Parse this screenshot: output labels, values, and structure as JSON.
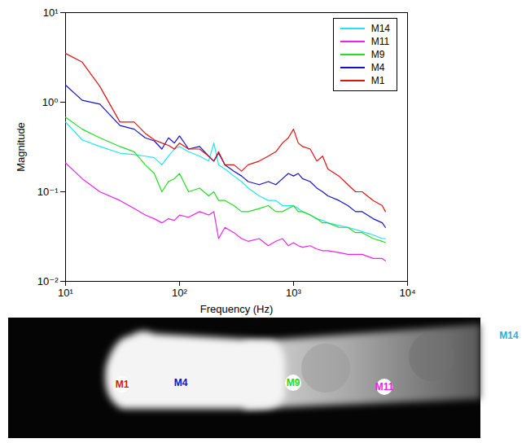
{
  "chart_data": {
    "type": "line",
    "x_label": "Frequency (Hz)",
    "y_label": "Magnitude",
    "log": true,
    "grid": false,
    "legend": "northeast",
    "xlim": [
      10,
      10000
    ],
    "xticks": [
      {
        "value": 10,
        "label": "10¹"
      },
      {
        "value": 100,
        "label": "10²"
      },
      {
        "value": 1000,
        "label": "10³"
      },
      {
        "value": 10000,
        "label": "10⁴"
      }
    ],
    "ylim": [
      0.01,
      10
    ],
    "yticks": [
      {
        "value": 0.01,
        "label": "10⁻²"
      },
      {
        "value": 0.1,
        "label": "10⁻¹"
      },
      {
        "value": 1,
        "label": "10⁰"
      },
      {
        "value": 10,
        "label": "10¹"
      }
    ],
    "x": [
      10,
      14,
      20,
      30,
      40,
      50,
      60,
      70,
      80,
      90,
      100,
      120,
      150,
      180,
      200,
      220,
      250,
      300,
      350,
      400,
      500,
      600,
      700,
      800,
      900,
      1000,
      1100,
      1200,
      1400,
      1600,
      1800,
      2000,
      2500,
      3000,
      3500,
      4000,
      5000,
      6000,
      6400
    ],
    "series": [
      {
        "name": "M14",
        "color": "#22e5f0",
        "values": [
          0.6,
          0.38,
          0.32,
          0.27,
          0.26,
          0.25,
          0.24,
          0.2,
          0.25,
          0.3,
          0.32,
          0.28,
          0.25,
          0.22,
          0.35,
          0.2,
          0.18,
          0.15,
          0.13,
          0.11,
          0.09,
          0.08,
          0.08,
          0.07,
          0.07,
          0.07,
          0.065,
          0.06,
          0.055,
          0.05,
          0.048,
          0.045,
          0.042,
          0.04,
          0.038,
          0.036,
          0.033,
          0.03,
          0.03
        ]
      },
      {
        "name": "M11",
        "color": "#ee22ee",
        "values": [
          0.21,
          0.14,
          0.1,
          0.08,
          0.065,
          0.055,
          0.05,
          0.045,
          0.05,
          0.048,
          0.055,
          0.052,
          0.06,
          0.055,
          0.06,
          0.03,
          0.04,
          0.035,
          0.03,
          0.028,
          0.03,
          0.025,
          0.028,
          0.03,
          0.025,
          0.027,
          0.025,
          0.024,
          0.025,
          0.023,
          0.022,
          0.022,
          0.021,
          0.02,
          0.02,
          0.02,
          0.018,
          0.018,
          0.017
        ]
      },
      {
        "name": "M9",
        "color": "#22dd22",
        "values": [
          0.68,
          0.5,
          0.4,
          0.32,
          0.28,
          0.2,
          0.16,
          0.1,
          0.13,
          0.14,
          0.16,
          0.1,
          0.11,
          0.09,
          0.1,
          0.08,
          0.08,
          0.07,
          0.06,
          0.06,
          0.065,
          0.07,
          0.06,
          0.06,
          0.065,
          0.07,
          0.06,
          0.06,
          0.055,
          0.05,
          0.045,
          0.045,
          0.04,
          0.04,
          0.035,
          0.035,
          0.03,
          0.028,
          0.027
        ]
      },
      {
        "name": "M4",
        "color": "#1111cc",
        "values": [
          1.55,
          1.05,
          0.95,
          0.55,
          0.5,
          0.4,
          0.37,
          0.3,
          0.4,
          0.35,
          0.42,
          0.3,
          0.32,
          0.25,
          0.22,
          0.27,
          0.2,
          0.17,
          0.15,
          0.13,
          0.12,
          0.13,
          0.12,
          0.14,
          0.16,
          0.15,
          0.16,
          0.14,
          0.13,
          0.11,
          0.1,
          0.09,
          0.08,
          0.07,
          0.06,
          0.06,
          0.05,
          0.045,
          0.04
        ]
      },
      {
        "name": "M1",
        "color": "#e01111",
        "values": [
          3.5,
          2.8,
          1.5,
          0.6,
          0.6,
          0.45,
          0.38,
          0.35,
          0.33,
          0.3,
          0.35,
          0.3,
          0.3,
          0.25,
          0.22,
          0.28,
          0.2,
          0.2,
          0.17,
          0.2,
          0.22,
          0.25,
          0.28,
          0.35,
          0.4,
          0.5,
          0.35,
          0.32,
          0.3,
          0.22,
          0.25,
          0.18,
          0.15,
          0.12,
          0.1,
          0.1,
          0.08,
          0.07,
          0.06
        ]
      }
    ]
  },
  "image": {
    "markers": [
      {
        "label": "M1",
        "color": "#e01111"
      },
      {
        "label": "M4",
        "color": "#1111cc"
      },
      {
        "label": "M9",
        "color": "#22dd22"
      },
      {
        "label": "M11",
        "color": "#ee22ee"
      },
      {
        "label": "M14",
        "color": "#22b5e0"
      }
    ]
  }
}
